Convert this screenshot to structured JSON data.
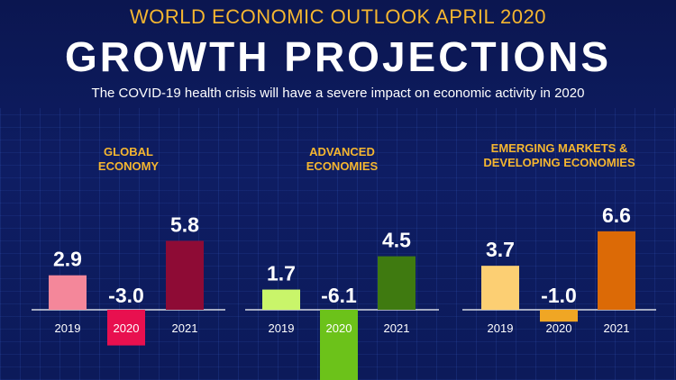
{
  "header": {
    "suptitle": "WORLD ECONOMIC OUTLOOK  APRIL 2020",
    "title": "GROWTH PROJECTIONS",
    "subtitle": "The COVID-19 health crisis will have a severe impact on economic activity in 2020"
  },
  "chart_data": [
    {
      "type": "bar",
      "title": [
        "GLOBAL",
        "ECONOMY"
      ],
      "categories": [
        "2019",
        "2020",
        "2021"
      ],
      "values": [
        2.9,
        -3.0,
        5.8
      ],
      "value_labels": [
        "2.9",
        "-3.0",
        "5.8"
      ],
      "colors": [
        "#f4879a",
        "#e8104f",
        "#8e0b35"
      ],
      "highlight": {
        "index": 1,
        "color": "#e8104f"
      }
    },
    {
      "type": "bar",
      "title": [
        "ADVANCED",
        "ECONOMIES"
      ],
      "categories": [
        "2019",
        "2020",
        "2021"
      ],
      "values": [
        1.7,
        -6.1,
        4.5
      ],
      "value_labels": [
        "1.7",
        "-6.1",
        "4.5"
      ],
      "colors": [
        "#c9f56a",
        "#6cc21a",
        "#3f7a10"
      ],
      "highlight": {
        "index": 1,
        "color": "#6cc21a"
      }
    },
    {
      "type": "bar",
      "title": [
        "EMERGING MARKETS &",
        "DEVELOPING ECONOMIES"
      ],
      "categories": [
        "2019",
        "2020",
        "2021"
      ],
      "values": [
        3.7,
        -1.0,
        6.6
      ],
      "value_labels": [
        "3.7",
        "-1.0",
        "6.6"
      ],
      "colors": [
        "#fccf73",
        "#f0a624",
        "#dc6a06"
      ],
      "highlight": null
    }
  ]
}
